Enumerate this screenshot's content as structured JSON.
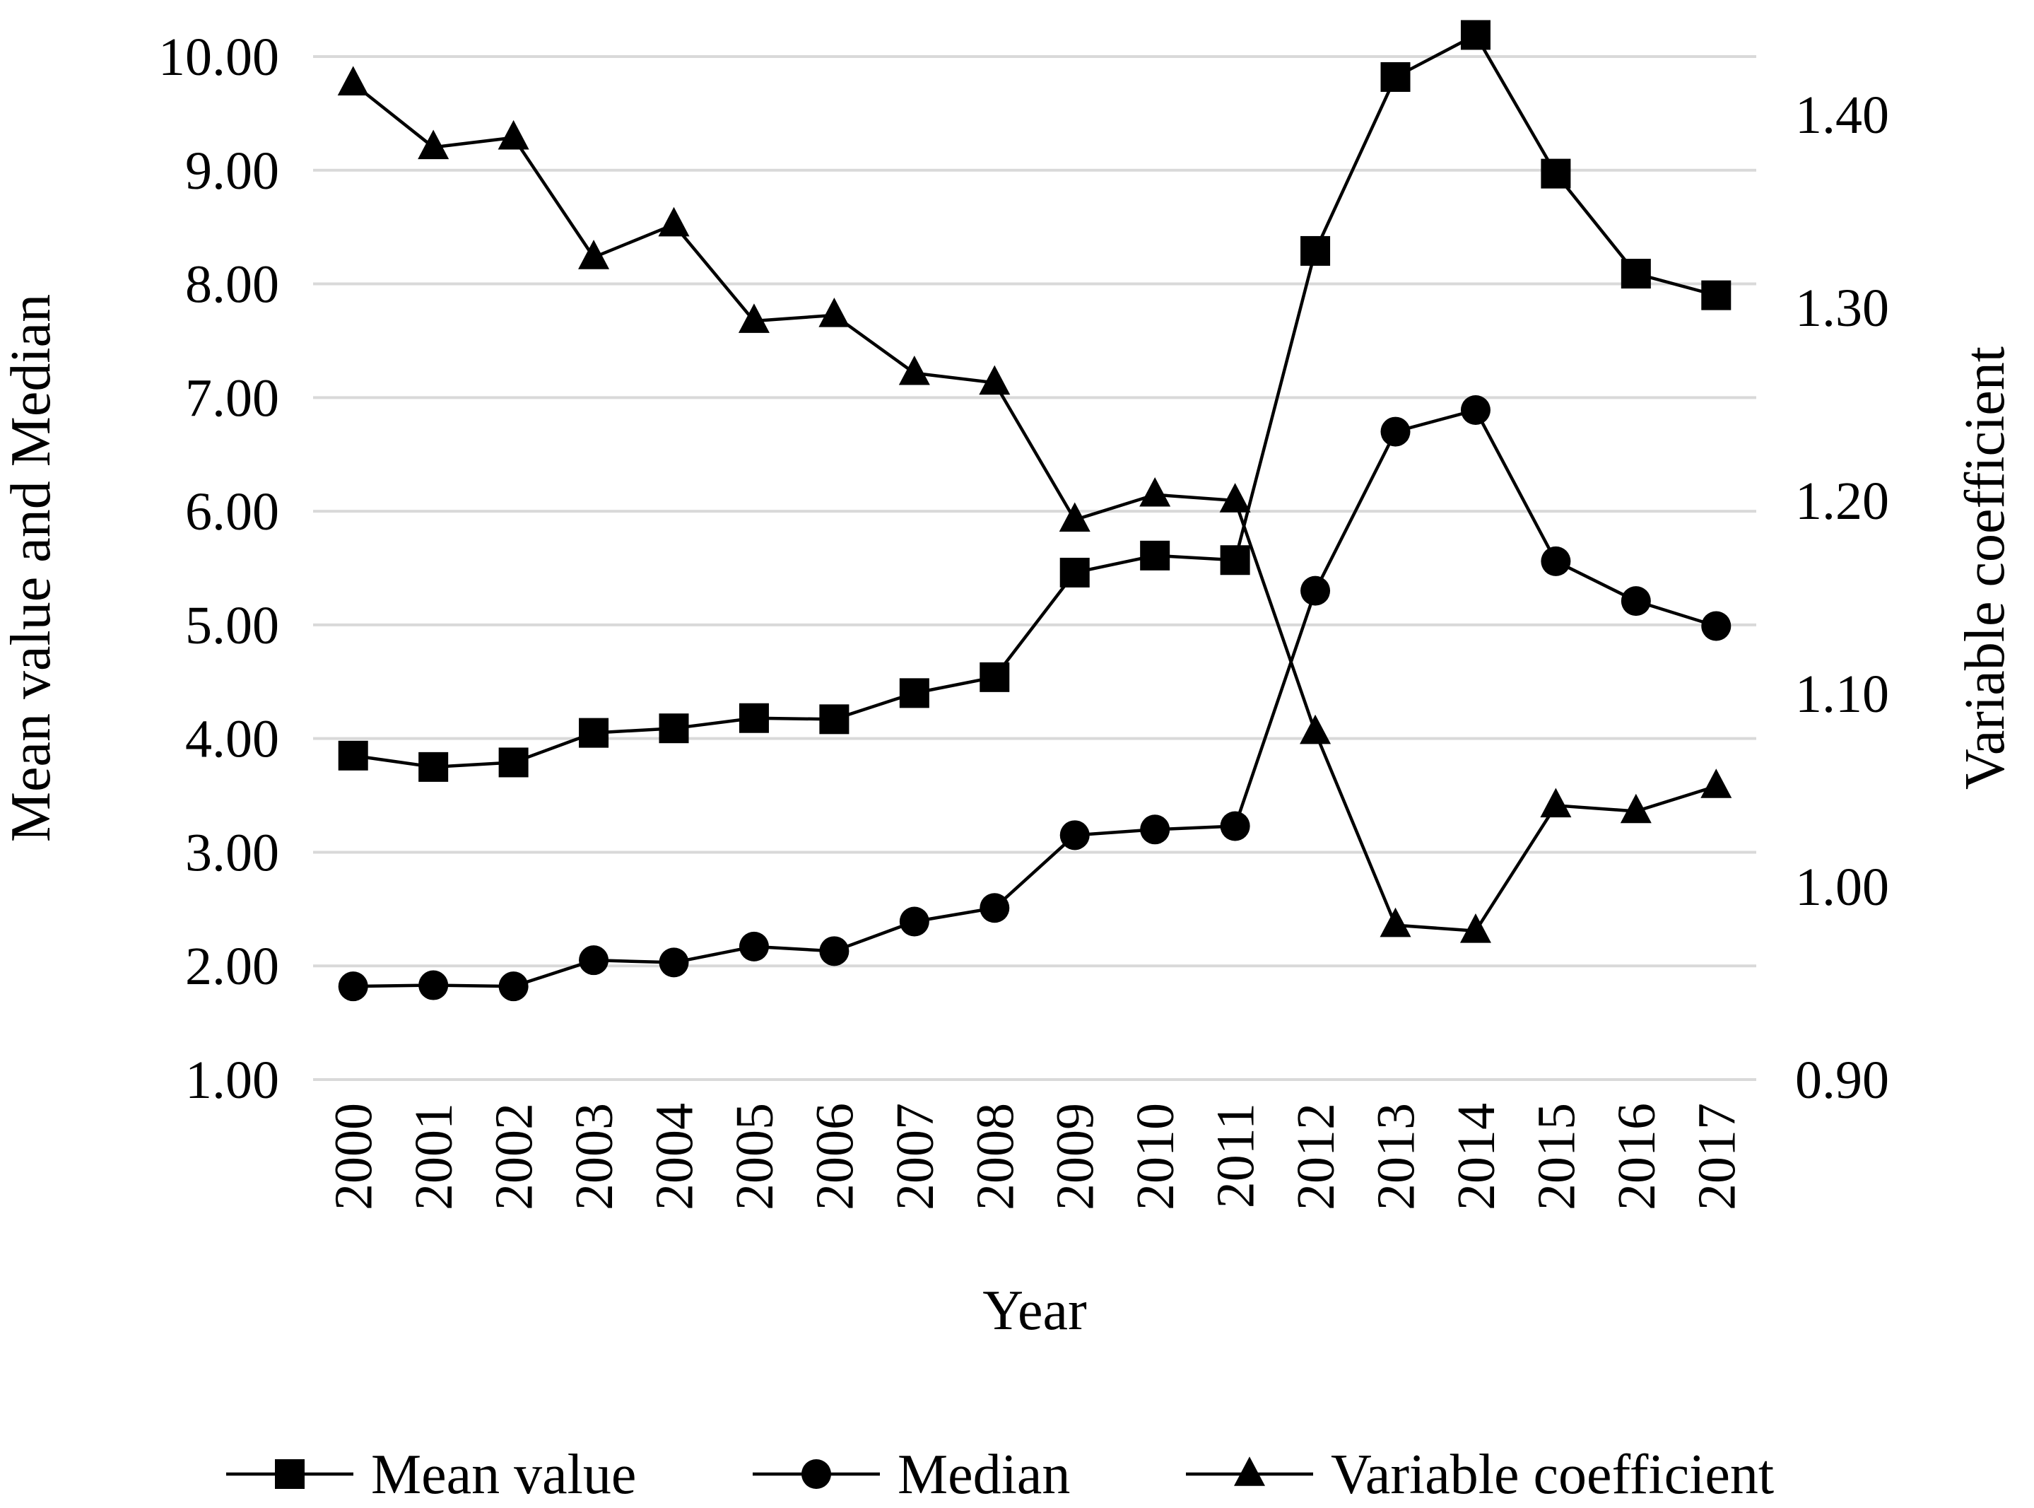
{
  "chart_data": {
    "type": "line",
    "title": "",
    "categories": [
      "2000",
      "2001",
      "2002",
      "2003",
      "2004",
      "2005",
      "2006",
      "2007",
      "2008",
      "2009",
      "2010",
      "2011",
      "2012",
      "2013",
      "2014",
      "2015",
      "2016",
      "2017"
    ],
    "xlabel": "Year",
    "ylabel": "Mean value and Median",
    "y2label": "Variable coefficient",
    "ylim": [
      1.0,
      10.0
    ],
    "y2lim": [
      0.9,
      1.43
    ],
    "yticks": [
      "1.00",
      "2.00",
      "3.00",
      "4.00",
      "5.00",
      "6.00",
      "7.00",
      "8.00",
      "9.00",
      "10.00"
    ],
    "y2ticks": [
      "0.90",
      "1.00",
      "1.10",
      "1.20",
      "1.30",
      "1.40"
    ],
    "grid": true,
    "legend_position": "bottom",
    "series": [
      {
        "name": "Mean value",
        "axis": "left",
        "marker": "square",
        "values": [
          3.85,
          3.75,
          3.79,
          4.05,
          4.09,
          4.18,
          4.17,
          4.4,
          4.54,
          5.46,
          5.61,
          5.57,
          8.29,
          9.82,
          10.19,
          8.97,
          8.09,
          7.9
        ]
      },
      {
        "name": "Median",
        "axis": "left",
        "marker": "circle",
        "values": [
          1.82,
          1.83,
          1.82,
          2.05,
          2.03,
          2.17,
          2.13,
          2.39,
          2.51,
          3.15,
          3.2,
          3.23,
          5.3,
          6.7,
          6.89,
          5.56,
          5.21,
          4.99
        ]
      },
      {
        "name": "Variable coefficient",
        "axis": "right",
        "marker": "triangle",
        "values": [
          1.416,
          1.383,
          1.388,
          1.326,
          1.343,
          1.293,
          1.296,
          1.266,
          1.261,
          1.19,
          1.203,
          1.2,
          1.08,
          0.98,
          0.977,
          1.042,
          1.039,
          1.052
        ]
      }
    ]
  }
}
